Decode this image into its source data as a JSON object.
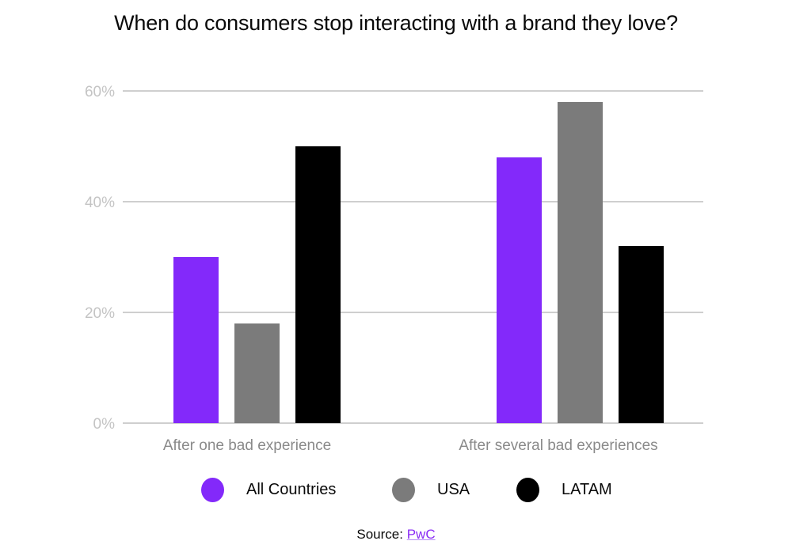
{
  "chart_data": {
    "type": "bar",
    "title": "When do consumers stop interacting with a brand they love?",
    "categories": [
      "After one bad experience",
      "After several bad experiences"
    ],
    "series": [
      {
        "name": "All Countries",
        "color": "#8329fa",
        "values": [
          30,
          48
        ]
      },
      {
        "name": "USA",
        "color": "#7b7b7b",
        "values": [
          18,
          58
        ]
      },
      {
        "name": "LATAM",
        "color": "#000000",
        "values": [
          50,
          32
        ]
      }
    ],
    "yticks": [
      0,
      20,
      40,
      60
    ],
    "ytick_labels": [
      "0%",
      "20%",
      "40%",
      "60%"
    ],
    "ylim": [
      0,
      60
    ],
    "xlabel": "",
    "ylabel": "",
    "grid": true,
    "legend_position": "bottom"
  },
  "source": {
    "prefix": "Source:",
    "link_text": "PwC"
  }
}
